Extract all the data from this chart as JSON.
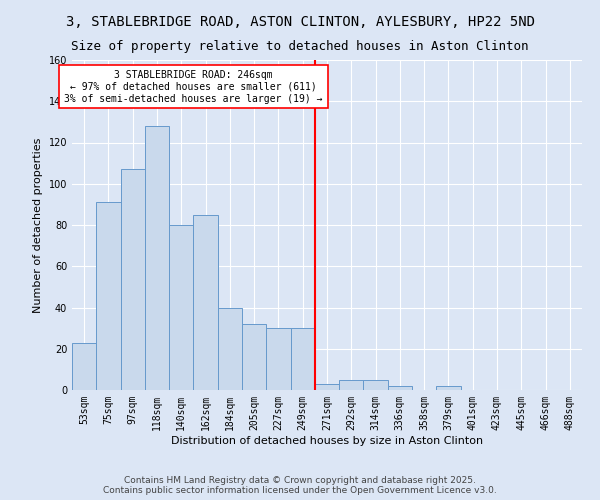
{
  "title": "3, STABLEBRIDGE ROAD, ASTON CLINTON, AYLESBURY, HP22 5ND",
  "subtitle": "Size of property relative to detached houses in Aston Clinton",
  "xlabel": "Distribution of detached houses by size in Aston Clinton",
  "ylabel": "Number of detached properties",
  "bar_labels": [
    "53sqm",
    "75sqm",
    "97sqm",
    "118sqm",
    "140sqm",
    "162sqm",
    "184sqm",
    "205sqm",
    "227sqm",
    "249sqm",
    "271sqm",
    "292sqm",
    "314sqm",
    "336sqm",
    "358sqm",
    "379sqm",
    "401sqm",
    "423sqm",
    "445sqm",
    "466sqm",
    "488sqm"
  ],
  "bar_values": [
    23,
    91,
    107,
    128,
    80,
    85,
    40,
    32,
    30,
    30,
    3,
    5,
    5,
    2,
    0,
    2,
    0,
    0,
    0,
    0,
    0
  ],
  "bar_color": "#c9d9ec",
  "bar_edgecolor": "#6699cc",
  "background_color": "#dce6f5",
  "grid_color": "#ffffff",
  "vline_x": 9.5,
  "vline_color": "red",
  "annotation_text": "3 STABLEBRIDGE ROAD: 246sqm\n← 97% of detached houses are smaller (611)\n3% of semi-detached houses are larger (19) →",
  "annotation_box_edgecolor": "red",
  "ylim": [
    0,
    160
  ],
  "yticks": [
    0,
    20,
    40,
    60,
    80,
    100,
    120,
    140,
    160
  ],
  "footer_line1": "Contains HM Land Registry data © Crown copyright and database right 2025.",
  "footer_line2": "Contains public sector information licensed under the Open Government Licence v3.0.",
  "title_fontsize": 10,
  "subtitle_fontsize": 9,
  "axis_label_fontsize": 8,
  "tick_fontsize": 7,
  "annotation_fontsize": 7,
  "footer_fontsize": 6.5
}
